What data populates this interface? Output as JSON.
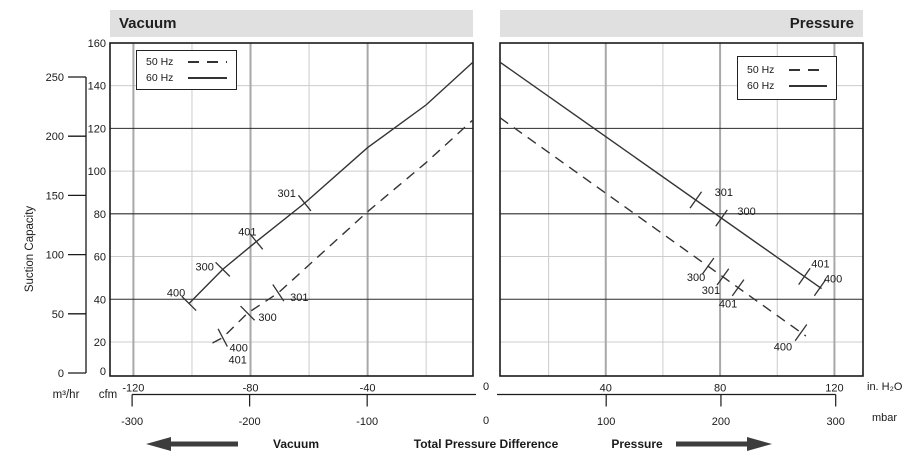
{
  "y_axis": {
    "label": "Suction Capacity",
    "cfm": {
      "unit": "cfm",
      "ticks": [
        {
          "v": 0,
          "t": "0"
        },
        {
          "v": 20,
          "t": "20"
        },
        {
          "v": 40,
          "t": "40"
        },
        {
          "v": 60,
          "t": "60"
        },
        {
          "v": 80,
          "t": "80"
        },
        {
          "v": 100,
          "t": "100"
        },
        {
          "v": 120,
          "t": "120"
        },
        {
          "v": 140,
          "t": "140"
        },
        {
          "v": 160,
          "t": "160"
        }
      ]
    },
    "m3hr": {
      "unit": "m³/hr",
      "ticks": [
        {
          "v": 0,
          "t": "0"
        },
        {
          "v": 50,
          "t": "50"
        },
        {
          "v": 100,
          "t": "100"
        },
        {
          "v": 150,
          "t": "150"
        },
        {
          "v": 200,
          "t": "200"
        },
        {
          "v": 250,
          "t": "250"
        }
      ]
    },
    "grid_major": [
      40,
      80,
      120
    ],
    "grid_minor": [
      20,
      60,
      100,
      140
    ],
    "ylim": [
      0,
      160
    ]
  },
  "axis_units": {
    "in_h2o": "in. H₂O",
    "mbar": "mbar",
    "zero_in_h2o": "0",
    "zero_mbar": "0"
  },
  "legend": {
    "items": [
      {
        "label": "50 Hz",
        "style": "dashed"
      },
      {
        "label": "60 Hz",
        "style": "solid"
      }
    ]
  },
  "footer": {
    "vacuum": "Vacuum",
    "center": "Total Pressure Difference",
    "pressure": "Pressure"
  },
  "colors": {
    "header_bg": "#e0e0e0",
    "line": "#333333",
    "grid_minor": "#cccccc",
    "grid_major_v": "#a8a8a8",
    "grid_major_h": "#2b2b2b",
    "border": "#1a1a1a",
    "text": "#1a1a1a",
    "arrow": "#3d3d3d"
  },
  "chart_data": [
    {
      "type": "line",
      "title": "Vacuum",
      "xlabel": "Total Pressure Difference (in. H₂O / mbar)",
      "ylabel": "Suction Capacity (cfm / m³/hr)",
      "x_domain": [
        -128,
        -4
      ],
      "x_grid_major": [
        -120,
        -80,
        -40
      ],
      "x_grid_minor": [
        -100,
        -60,
        -20
      ],
      "x_ticks": [
        {
          "v": -120,
          "t": "-120"
        },
        {
          "v": -80,
          "t": "-80"
        },
        {
          "v": -40,
          "t": "-40"
        }
      ],
      "mbar_ticks": [
        {
          "v": -120.45,
          "t": "-300"
        },
        {
          "v": -80.3,
          "t": "-200"
        },
        {
          "v": -40.15,
          "t": "-100"
        }
      ],
      "series": [
        {
          "name": "50 Hz",
          "style": "dashed",
          "points": [
            [
              -93,
              19.5
            ],
            [
              -89.5,
              22
            ],
            [
              -81,
              33.5
            ],
            [
              -70.5,
              43
            ],
            [
              -40,
              81
            ],
            [
              -20,
              104
            ],
            [
              -4,
              124
            ]
          ],
          "marks": [
            {
              "x": -89.5,
              "y": 22,
              "labels": [
                {
                  "t": "400",
                  "dx": 16,
                  "dy": 14
                },
                {
                  "t": "401",
                  "dx": 15,
                  "dy": 26
                }
              ]
            },
            {
              "x": -81,
              "y": 33.5,
              "labels": [
                {
                  "t": "300",
                  "dx": 20,
                  "dy": 8
                }
              ]
            },
            {
              "x": -70.5,
              "y": 43,
              "labels": [
                {
                  "t": "301",
                  "dx": 21,
                  "dy": 8
                }
              ]
            }
          ]
        },
        {
          "name": "60 Hz",
          "style": "solid",
          "points": [
            [
              -101,
              38
            ],
            [
              -89.5,
              54
            ],
            [
              -78,
              67
            ],
            [
              -61.5,
              85
            ],
            [
              -40,
              111
            ],
            [
              -20,
              131
            ],
            [
              -4,
              151
            ]
          ],
          "marks": [
            {
              "x": -101,
              "y": 38,
              "labels": [
                {
                  "t": "400",
                  "dx": -13,
                  "dy": -7
                }
              ]
            },
            {
              "x": -89.5,
              "y": 54,
              "labels": [
                {
                  "t": "300",
                  "dx": -18,
                  "dy": 1
                }
              ]
            },
            {
              "x": -78,
              "y": 67,
              "labels": [
                {
                  "t": "401",
                  "dx": -9,
                  "dy": -6
                }
              ]
            },
            {
              "x": -61.5,
              "y": 85,
              "labels": [
                {
                  "t": "301",
                  "dx": -18,
                  "dy": -6
                }
              ]
            }
          ]
        }
      ]
    },
    {
      "type": "line",
      "title": "Pressure",
      "xlabel": "Total Pressure Difference (in. H₂O / mbar)",
      "ylabel": "Suction Capacity (cfm / m³/hr)",
      "x_domain": [
        3,
        130
      ],
      "x_grid_major": [
        40,
        80,
        120
      ],
      "x_grid_minor": [
        20,
        60,
        100
      ],
      "x_ticks": [
        {
          "v": 40,
          "t": "40"
        },
        {
          "v": 80,
          "t": "80"
        },
        {
          "v": 120,
          "t": "120"
        }
      ],
      "mbar_ticks": [
        {
          "v": 40.15,
          "t": "100"
        },
        {
          "v": 80.3,
          "t": "200"
        },
        {
          "v": 120.45,
          "t": "300"
        }
      ],
      "series": [
        {
          "name": "50 Hz",
          "style": "dashed",
          "points": [
            [
              3,
              125
            ],
            [
              110,
              22.8
            ]
          ],
          "marks": [
            {
              "x": 75.8,
              "y": 55.5,
              "labels": [
                {
                  "t": "300",
                  "dx": -12,
                  "dy": 15
                }
              ]
            },
            {
              "x": 81,
              "y": 50.5,
              "labels": [
                {
                  "t": "301",
                  "dx": -12,
                  "dy": 17
                }
              ]
            },
            {
              "x": 86.3,
              "y": 45.4,
              "labels": [
                {
                  "t": "401",
                  "dx": -10,
                  "dy": 20
                }
              ]
            },
            {
              "x": 108.3,
              "y": 24.4,
              "labels": [
                {
                  "t": "400",
                  "dx": -18,
                  "dy": 18
                }
              ]
            }
          ]
        },
        {
          "name": "60 Hz",
          "style": "solid",
          "points": [
            [
              3,
              151
            ],
            [
              115.5,
              45
            ]
          ],
          "marks": [
            {
              "x": 71.5,
              "y": 86.5,
              "labels": [
                {
                  "t": "301",
                  "dx": 28,
                  "dy": -4
                }
              ]
            },
            {
              "x": 80.5,
              "y": 78,
              "labels": [
                {
                  "t": "300",
                  "dx": 25,
                  "dy": -3
                }
              ]
            },
            {
              "x": 109.5,
              "y": 50.7,
              "labels": [
                {
                  "t": "401",
                  "dx": 16,
                  "dy": -9
                }
              ]
            },
            {
              "x": 115,
              "y": 45.5,
              "labels": [
                {
                  "t": "400",
                  "dx": 13,
                  "dy": -5
                }
              ]
            }
          ]
        }
      ]
    }
  ]
}
